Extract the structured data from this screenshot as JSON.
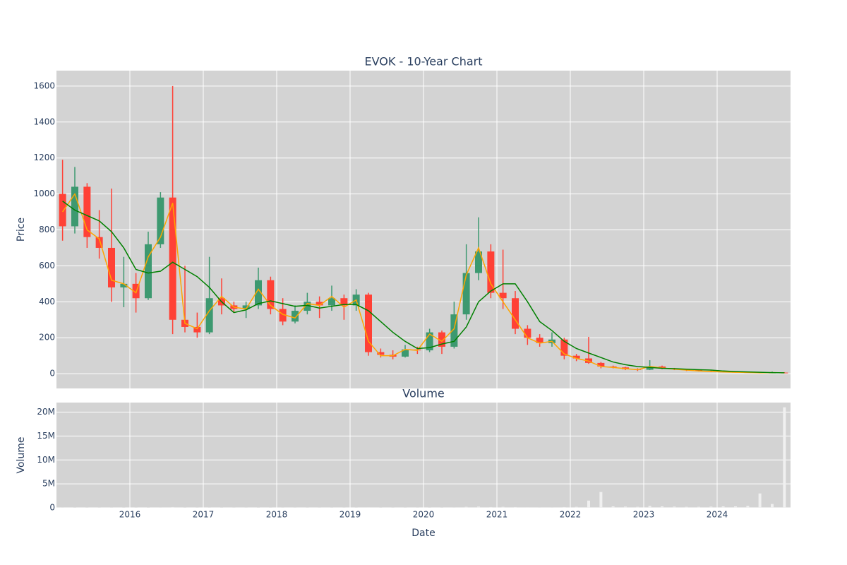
{
  "chart_data": [
    {
      "type": "candlestick",
      "title": "EVOK - 10-Year Chart",
      "ylabel": "Price",
      "x": [
        2015.083,
        2015.25,
        2015.417,
        2015.583,
        2015.75,
        2015.917,
        2016.083,
        2016.25,
        2016.417,
        2016.583,
        2016.75,
        2016.917,
        2017.083,
        2017.25,
        2017.417,
        2017.583,
        2017.75,
        2017.917,
        2018.083,
        2018.25,
        2018.417,
        2018.583,
        2018.75,
        2018.917,
        2019.083,
        2019.25,
        2019.417,
        2019.583,
        2019.75,
        2019.917,
        2020.083,
        2020.25,
        2020.417,
        2020.583,
        2020.75,
        2020.917,
        2021.083,
        2021.25,
        2021.417,
        2021.583,
        2021.75,
        2021.917,
        2022.083,
        2022.25,
        2022.417,
        2022.583,
        2022.75,
        2022.917,
        2023.083,
        2023.25,
        2023.417,
        2023.583,
        2023.75,
        2023.917,
        2024.083,
        2024.25,
        2024.417,
        2024.583,
        2024.75,
        2024.917
      ],
      "open": [
        1000,
        820,
        1040,
        760,
        700,
        480,
        500,
        420,
        720,
        980,
        300,
        260,
        230,
        420,
        380,
        360,
        380,
        520,
        360,
        290,
        350,
        400,
        380,
        420,
        380,
        440,
        120,
        105,
        95,
        135,
        130,
        230,
        150,
        330,
        560,
        680,
        450,
        420,
        250,
        200,
        170,
        190,
        100,
        85,
        60,
        40,
        35,
        25,
        22,
        40,
        30,
        25,
        20,
        15,
        12,
        10,
        8,
        7,
        5,
        6
      ],
      "high": [
        1190,
        1150,
        1060,
        910,
        1030,
        650,
        560,
        790,
        1010,
        1600,
        600,
        340,
        650,
        530,
        400,
        400,
        590,
        540,
        420,
        380,
        450,
        430,
        490,
        440,
        470,
        450,
        140,
        130,
        160,
        150,
        250,
        240,
        400,
        720,
        870,
        720,
        690,
        460,
        270,
        220,
        230,
        200,
        110,
        205,
        65,
        45,
        38,
        30,
        75,
        45,
        32,
        28,
        22,
        18,
        14,
        12,
        10,
        9,
        12,
        8
      ],
      "low": [
        740,
        780,
        700,
        640,
        400,
        370,
        340,
        410,
        700,
        220,
        230,
        200,
        220,
        330,
        340,
        310,
        360,
        330,
        270,
        280,
        330,
        310,
        350,
        300,
        350,
        100,
        90,
        80,
        90,
        110,
        120,
        110,
        140,
        300,
        520,
        420,
        360,
        220,
        160,
        150,
        150,
        80,
        70,
        55,
        30,
        30,
        20,
        15,
        20,
        25,
        20,
        15,
        12,
        10,
        8,
        6,
        5,
        3,
        3,
        4
      ],
      "close": [
        820,
        1040,
        760,
        700,
        480,
        500,
        420,
        720,
        980,
        300,
        260,
        230,
        420,
        380,
        360,
        380,
        520,
        360,
        290,
        350,
        400,
        380,
        420,
        380,
        440,
        120,
        105,
        95,
        135,
        130,
        230,
        150,
        330,
        560,
        680,
        450,
        420,
        250,
        200,
        170,
        190,
        100,
        85,
        60,
        40,
        35,
        25,
        22,
        40,
        30,
        25,
        20,
        15,
        12,
        10,
        8,
        7,
        5,
        6,
        5
      ],
      "increasing_color": "#3d9970",
      "decreasing_color": "#ff4136",
      "lines": [
        {
          "color": "#ffa500",
          "values": [
            900,
            1000,
            800,
            750,
            520,
            500,
            450,
            650,
            760,
            950,
            280,
            250,
            350,
            430,
            370,
            360,
            470,
            380,
            330,
            310,
            390,
            380,
            430,
            370,
            410,
            180,
            100,
            100,
            135,
            130,
            220,
            180,
            250,
            550,
            700,
            500,
            400,
            300,
            200,
            170,
            180,
            110,
            85,
            70,
            40,
            35,
            28,
            22,
            40,
            32,
            25,
            20,
            15,
            12,
            10,
            8,
            7,
            5,
            6,
            5
          ]
        },
        {
          "color": "#008000",
          "values": [
            960,
            910,
            880,
            850,
            790,
            700,
            580,
            560,
            570,
            620,
            580,
            540,
            480,
            400,
            340,
            355,
            390,
            405,
            390,
            375,
            380,
            365,
            375,
            385,
            385,
            350,
            290,
            230,
            180,
            140,
            145,
            165,
            180,
            260,
            400,
            460,
            500,
            500,
            400,
            290,
            240,
            180,
            140,
            115,
            90,
            65,
            50,
            40,
            35,
            30,
            28,
            25,
            22,
            20,
            15,
            12,
            10,
            8,
            6,
            5
          ]
        }
      ],
      "xlim": [
        2015.0,
        2025.0
      ],
      "xticks": [
        2016,
        2017,
        2018,
        2019,
        2020,
        2021,
        2022,
        2023,
        2024
      ],
      "ylim": [
        -82,
        1686
      ],
      "yticks": [
        0,
        200,
        400,
        600,
        800,
        1000,
        1200,
        1400,
        1600
      ],
      "grid": true
    },
    {
      "type": "bar",
      "title": "Volume",
      "ylabel": "Volume",
      "xlabel": "Date",
      "x": [
        2015.083,
        2015.25,
        2015.417,
        2015.583,
        2015.75,
        2015.917,
        2016.083,
        2016.25,
        2016.417,
        2016.583,
        2016.75,
        2016.917,
        2017.083,
        2017.25,
        2017.417,
        2017.583,
        2017.75,
        2017.917,
        2018.083,
        2018.25,
        2018.417,
        2018.583,
        2018.75,
        2018.917,
        2019.083,
        2019.25,
        2019.417,
        2019.583,
        2019.75,
        2019.917,
        2020.083,
        2020.25,
        2020.417,
        2020.583,
        2020.75,
        2020.917,
        2021.083,
        2021.25,
        2021.417,
        2021.583,
        2021.75,
        2021.917,
        2022.083,
        2022.25,
        2022.417,
        2022.583,
        2022.75,
        2022.917,
        2023.083,
        2023.25,
        2023.417,
        2023.583,
        2023.75,
        2023.917,
        2024.083,
        2024.25,
        2024.417,
        2024.583,
        2024.75,
        2024.917
      ],
      "values": [
        100000,
        80000,
        60000,
        60000,
        90000,
        70000,
        60000,
        80000,
        100000,
        150000,
        80000,
        60000,
        90000,
        70000,
        50000,
        50000,
        80000,
        60000,
        50000,
        50000,
        60000,
        50000,
        60000,
        50000,
        60000,
        120000,
        80000,
        60000,
        60000,
        50000,
        80000,
        70000,
        100000,
        200000,
        250000,
        150000,
        200000,
        150000,
        120000,
        100000,
        100000,
        150000,
        200000,
        1500000,
        3300000,
        300000,
        250000,
        200000,
        400000,
        300000,
        250000,
        200000,
        200000,
        250000,
        300000,
        300000,
        400000,
        3000000,
        800000,
        21000000
      ],
      "color": "#f0f0f0",
      "xlim": [
        2015.0,
        2025.0
      ],
      "xticks": [
        2016,
        2017,
        2018,
        2019,
        2020,
        2021,
        2022,
        2023,
        2024
      ],
      "ylim": [
        0,
        22000000
      ],
      "yticks": [
        0,
        {
          "value": 5000000,
          "label": "5M"
        },
        {
          "value": 10000000,
          "label": "10M"
        },
        {
          "value": 15000000,
          "label": "15M"
        },
        {
          "value": 20000000,
          "label": "20M"
        }
      ],
      "grid": true
    }
  ]
}
